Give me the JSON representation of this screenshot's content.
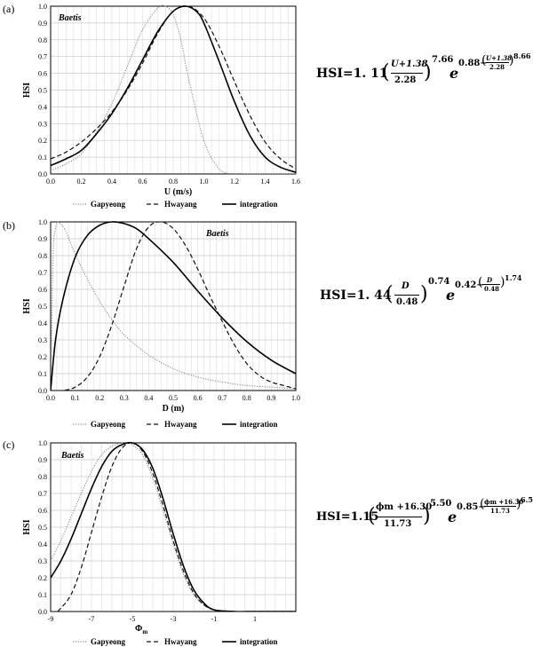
{
  "chart_data": [
    {
      "type": "line",
      "panel_label": "(a)",
      "species": "Baetis",
      "xlabel": "U (m/s)",
      "ylabel": "HSI",
      "xlim": [
        0,
        1.6
      ],
      "ylim": [
        0,
        1.0
      ],
      "xticks": [
        "0.0",
        "0.2",
        "0.4",
        "0.6",
        "0.8",
        "1.0",
        "1.2",
        "1.4",
        "1.6"
      ],
      "yticks": [
        "0.0",
        "0.1",
        "0.2",
        "0.3",
        "0.4",
        "0.5",
        "0.6",
        "0.7",
        "0.8",
        "0.9",
        "1.0"
      ],
      "grid": true,
      "legend_position": "bottom",
      "series": [
        {
          "name": "Gapyeong",
          "style": "dotted",
          "x": [
            0,
            0.1,
            0.2,
            0.3,
            0.4,
            0.5,
            0.6,
            0.7,
            0.75,
            0.8,
            0.85,
            0.9,
            1.0,
            1.1,
            1.2,
            1.3,
            1.6
          ],
          "y": [
            0.02,
            0.06,
            0.12,
            0.25,
            0.42,
            0.64,
            0.86,
            0.99,
            1.0,
            0.95,
            0.8,
            0.57,
            0.2,
            0.03,
            0.0,
            0.0,
            0.0
          ]
        },
        {
          "name": "Hwayang",
          "style": "dashed",
          "x": [
            0,
            0.1,
            0.2,
            0.3,
            0.4,
            0.5,
            0.6,
            0.7,
            0.8,
            0.9,
            1.0,
            1.1,
            1.2,
            1.3,
            1.4,
            1.5,
            1.6
          ],
          "y": [
            0.09,
            0.13,
            0.19,
            0.27,
            0.37,
            0.5,
            0.66,
            0.84,
            0.97,
            1.0,
            0.93,
            0.76,
            0.55,
            0.35,
            0.19,
            0.09,
            0.03
          ]
        },
        {
          "name": "integration",
          "style": "solid",
          "x": [
            0,
            0.1,
            0.2,
            0.3,
            0.4,
            0.5,
            0.6,
            0.7,
            0.8,
            0.88,
            0.95,
            1.0,
            1.1,
            1.2,
            1.3,
            1.4,
            1.5,
            1.6
          ],
          "y": [
            0.05,
            0.09,
            0.14,
            0.24,
            0.36,
            0.51,
            0.68,
            0.85,
            0.97,
            1.0,
            0.97,
            0.9,
            0.67,
            0.43,
            0.23,
            0.1,
            0.04,
            0.01
          ]
        }
      ]
    },
    {
      "type": "line",
      "panel_label": "(b)",
      "species": "Baetis",
      "xlabel": "D (m)",
      "ylabel": "HSI",
      "xlim": [
        0,
        1.0
      ],
      "ylim": [
        0,
        1.0
      ],
      "xticks": [
        "0.0",
        "0.1",
        "0.2",
        "0.3",
        "0.4",
        "0.5",
        "0.6",
        "0.7",
        "0.8",
        "0.9",
        "1.0"
      ],
      "yticks": [
        "0.0",
        "0.1",
        "0.2",
        "0.3",
        "0.4",
        "0.5",
        "0.6",
        "0.7",
        "0.8",
        "0.9",
        "1.0"
      ],
      "grid": true,
      "legend_position": "bottom",
      "series": [
        {
          "name": "Gapyeong",
          "style": "dotted",
          "x": [
            0,
            0.01,
            0.02,
            0.03,
            0.04,
            0.06,
            0.08,
            0.1,
            0.15,
            0.2,
            0.25,
            0.3,
            0.4,
            0.5,
            0.6,
            0.7,
            0.8,
            0.9,
            1.0
          ],
          "y": [
            0.0,
            0.8,
            0.96,
            1.0,
            0.99,
            0.95,
            0.88,
            0.81,
            0.66,
            0.53,
            0.42,
            0.33,
            0.21,
            0.13,
            0.08,
            0.05,
            0.03,
            0.02,
            0.01
          ]
        },
        {
          "name": "Hwayang",
          "style": "dashed",
          "x": [
            0,
            0.05,
            0.1,
            0.15,
            0.2,
            0.25,
            0.3,
            0.35,
            0.4,
            0.45,
            0.5,
            0.55,
            0.6,
            0.65,
            0.7,
            0.75,
            0.8,
            0.85,
            0.9,
            0.95,
            1.0
          ],
          "y": [
            0.0,
            0.0,
            0.02,
            0.08,
            0.2,
            0.39,
            0.62,
            0.84,
            0.97,
            1.0,
            0.96,
            0.86,
            0.72,
            0.56,
            0.41,
            0.27,
            0.16,
            0.09,
            0.05,
            0.03,
            0.01
          ]
        },
        {
          "name": "integration",
          "style": "solid",
          "x": [
            0,
            0.02,
            0.05,
            0.1,
            0.15,
            0.2,
            0.25,
            0.3,
            0.35,
            0.4,
            0.5,
            0.6,
            0.7,
            0.8,
            0.9,
            1.0
          ],
          "y": [
            0.0,
            0.3,
            0.54,
            0.79,
            0.92,
            0.98,
            1.0,
            0.99,
            0.96,
            0.9,
            0.76,
            0.59,
            0.43,
            0.29,
            0.18,
            0.1
          ]
        }
      ]
    },
    {
      "type": "line",
      "panel_label": "(c)",
      "species": "Baetis",
      "xlabel": "Φm",
      "ylabel": "HSI",
      "xlim": [
        -9,
        3
      ],
      "ylim": [
        0,
        1.0
      ],
      "xticks": [
        "-9",
        "-7",
        "-5",
        "-3",
        "-1",
        "1"
      ],
      "yticks": [
        "0.0",
        "0.1",
        "0.2",
        "0.3",
        "0.4",
        "0.5",
        "0.6",
        "0.7",
        "0.8",
        "0.9",
        "1.0"
      ],
      "grid": true,
      "legend_position": "bottom",
      "series": [
        {
          "name": "Gapyeong",
          "style": "dotted",
          "x": [
            -9,
            -8.5,
            -8,
            -7.5,
            -7,
            -6.5,
            -6,
            -5.5,
            -5.2,
            -5,
            -4.5,
            -4,
            -3.5,
            -3,
            -2.5,
            -2,
            -1.5,
            -1,
            0,
            1,
            3
          ],
          "y": [
            0.3,
            0.42,
            0.56,
            0.7,
            0.83,
            0.93,
            0.98,
            1.0,
            1.0,
            0.99,
            0.93,
            0.79,
            0.6,
            0.4,
            0.22,
            0.1,
            0.04,
            0.01,
            0.0,
            0.0,
            0.0
          ]
        },
        {
          "name": "Hwayang",
          "style": "dashed",
          "x": [
            -9,
            -8.7,
            -8.5,
            -8,
            -7.5,
            -7,
            -6.5,
            -6,
            -5.5,
            -5,
            -4.5,
            -4,
            -3.5,
            -3,
            -2.5,
            -2,
            -1.5,
            -1,
            0,
            1,
            3
          ],
          "y": [
            0.0,
            0.0,
            0.02,
            0.1,
            0.26,
            0.47,
            0.68,
            0.86,
            0.97,
            1.0,
            0.95,
            0.82,
            0.63,
            0.42,
            0.24,
            0.11,
            0.04,
            0.01,
            0.0,
            0.0,
            0.0
          ]
        },
        {
          "name": "integration",
          "style": "solid",
          "x": [
            -9,
            -8.5,
            -8,
            -7.5,
            -7,
            -6.5,
            -6,
            -5.5,
            -5,
            -4.5,
            -4,
            -3.5,
            -3,
            -2.5,
            -2,
            -1.5,
            -1,
            0,
            1,
            3
          ],
          "y": [
            0.2,
            0.3,
            0.43,
            0.58,
            0.73,
            0.86,
            0.95,
            0.99,
            1.0,
            0.96,
            0.85,
            0.67,
            0.46,
            0.27,
            0.13,
            0.05,
            0.01,
            0.0,
            0.0,
            0.0
          ]
        }
      ]
    }
  ],
  "legend": {
    "items": [
      {
        "name": "Gapyeong",
        "style": "dotted"
      },
      {
        "name": "Hwayang",
        "style": "dashed"
      },
      {
        "name": "integration",
        "style": "solid"
      }
    ]
  },
  "equations": {
    "a": {
      "prefix": "HSI=1. 11",
      "lp": "(",
      "num": "U+1.38",
      "den": "2.28",
      "rp": ")",
      "exp1": "7.66",
      "e": "e",
      "exp2a": "0.88−",
      "num2": "U+1.38",
      "den2": "2.28",
      "exp3": "8.66"
    },
    "b": {
      "prefix": "HSI=1. 44",
      "lp": "(",
      "num": "D",
      "den": "0.48",
      "rp": ")",
      "exp1": "0.74",
      "e": "e",
      "exp2a": "0.42−",
      "num2": "D",
      "den2": "0.48",
      "exp3": "1.74"
    },
    "c": {
      "prefix": "HSI=1.15",
      "lp": "(",
      "num": "ϕm +16.30",
      "den": "11.73",
      "rp": ")",
      "exp1": "5.50",
      "e": "e",
      "exp2a": "0.85−",
      "num2": "ϕm +16.30",
      "den2": "11.73",
      "exp3": "6.50"
    }
  }
}
